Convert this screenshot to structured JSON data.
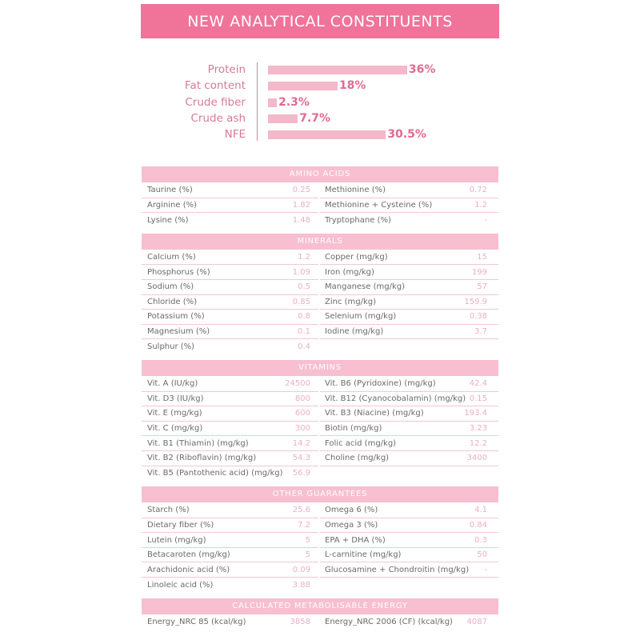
{
  "title": "NEW ANALYTICAL CONSTITUENTS",
  "chart_data": {
    "type": "bar",
    "orientation": "horizontal",
    "categories": [
      "Protein",
      "Fat content",
      "Crude fiber",
      "Crude ash",
      "NFE"
    ],
    "values": [
      36,
      18,
      2.3,
      7.7,
      30.5
    ],
    "value_labels": [
      "36%",
      "18%",
      "2.3%",
      "7.7%",
      "30.5%"
    ],
    "unit": "%",
    "bar_color": "#f5b8cb",
    "label_color": "#e06a92"
  },
  "sections": [
    {
      "title": "AMINO ACIDS",
      "left": [
        [
          "Taurine (%)",
          "0.25"
        ],
        [
          "Arginine (%)",
          "1.82"
        ],
        [
          "Lysine (%)",
          "1.48"
        ]
      ],
      "right": [
        [
          "Methionine (%)",
          "0.72"
        ],
        [
          "Methionine + Cysteine (%)",
          "1.2"
        ],
        [
          "Tryptophane (%)",
          "-"
        ]
      ]
    },
    {
      "title": "MINERALS",
      "left": [
        [
          "Calcium (%)",
          "1.2"
        ],
        [
          "Phosphorus (%)",
          "1.09"
        ],
        [
          "Sodium (%)",
          "0.5"
        ],
        [
          "Chloride (%)",
          "0.85"
        ],
        [
          "Potassium (%)",
          "0.8"
        ],
        [
          "Magnesium (%)",
          "0.1"
        ],
        [
          "Sulphur (%)",
          "0.4"
        ]
      ],
      "right": [
        [
          "Copper (mg/kg)",
          "15"
        ],
        [
          "Iron (mg/kg)",
          "199"
        ],
        [
          "Manganese (mg/kg)",
          "57"
        ],
        [
          "Zinc (mg/kg)",
          "159.9"
        ],
        [
          "Selenium (mg/kg)",
          "0.38"
        ],
        [
          "Iodine (mg/kg)",
          "3.7"
        ]
      ]
    },
    {
      "title": "VITAMINS",
      "left": [
        [
          "Vit. A (IU/kg)",
          "24500"
        ],
        [
          "Vit. D3 (IU/kg)",
          "800"
        ],
        [
          "Vit. E (mg/kg)",
          "600"
        ],
        [
          "Vit. C (mg/kg)",
          "300"
        ],
        [
          "Vit. B1 (Thiamin) (mg/kg)",
          "14.2"
        ],
        [
          "Vit. B2 (Riboflavin) (mg/kg)",
          "54.3"
        ],
        [
          "Vit. B5 (Pantothenic acid) (mg/kg)",
          "56.9"
        ]
      ],
      "right": [
        [
          "Vit. B6 (Pyridoxine) (mg/kg)",
          "42.4"
        ],
        [
          "Vit. B12 (Cyanocobalamin) (mg/kg)",
          "0.15"
        ],
        [
          "Vit. B3 (Niacine) (mg/kg)",
          "193.4"
        ],
        [
          "Biotin (mg/kg)",
          "3.23"
        ],
        [
          "Folic acid (mg/kg)",
          "12.2"
        ],
        [
          "Choline (mg/kg)",
          "3400"
        ]
      ]
    },
    {
      "title": "OTHER GUARANTEES",
      "left": [
        [
          "Starch (%)",
          "25.6"
        ],
        [
          "Dietary fiber (%)",
          "7.2"
        ],
        [
          "Lutein (mg/kg)",
          "5"
        ],
        [
          "Betacaroten (mg/kg)",
          "5"
        ],
        [
          "Arachidonic acid (%)",
          "0.09"
        ],
        [
          "Linoleic acid (%)",
          "3.88"
        ]
      ],
      "right": [
        [
          "Omega 6 (%)",
          "4.1"
        ],
        [
          "Omega 3 (%)",
          "0.84"
        ],
        [
          "EPA + DHA (%)",
          "0.3"
        ],
        [
          "L-carnitine (mg/kg)",
          "50"
        ],
        [
          "Glucosamine + Chondroitin (mg/kg)",
          "-"
        ]
      ]
    },
    {
      "title": "CALCULATED METABOLISABLE ENERGY",
      "left": [
        [
          "Energy_NRC 85 (kcal/kg)",
          "3858"
        ]
      ],
      "right": [
        [
          "Energy_NRC 2006 (CF) (kcal/kg)",
          "4087"
        ]
      ]
    }
  ]
}
